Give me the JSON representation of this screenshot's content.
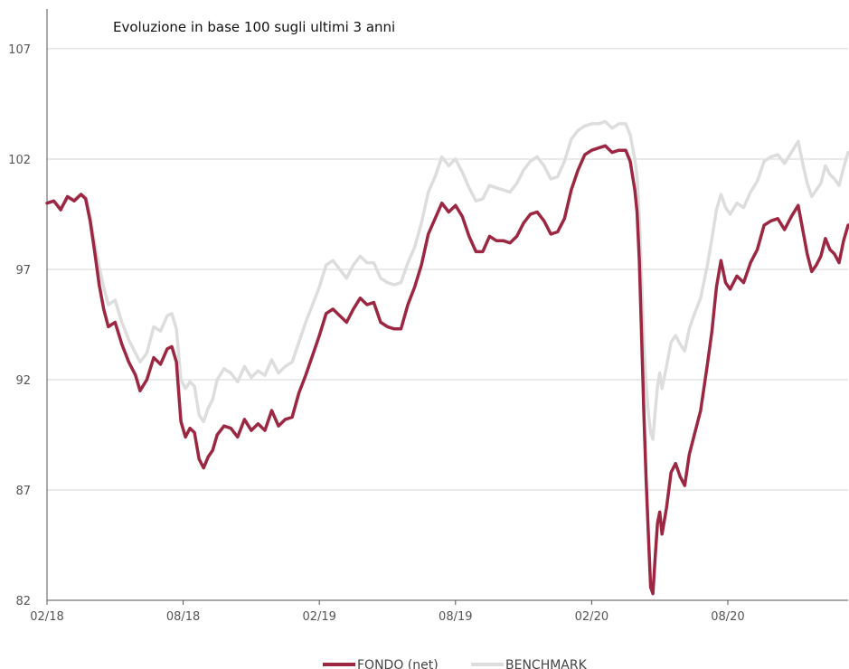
{
  "chart_data": {
    "type": "line",
    "title": "Evoluzione in base 100 sugli ultimi 3 anni",
    "xlabel": "",
    "ylabel": "",
    "x_ticks": [
      "02/18",
      "08/18",
      "02/19",
      "08/19",
      "02/20",
      "08/20"
    ],
    "y_ticks": [
      82,
      87,
      92,
      97,
      102,
      107
    ],
    "ylim": [
      82,
      108.8
    ],
    "xlim": [
      0,
      35.3
    ],
    "grid": "horizontal",
    "legend_position": "bottom",
    "x_unit": "months since 02/18",
    "series": [
      {
        "name": "FONDO (net)",
        "color": "#9b2743",
        "points": [
          [
            0,
            100
          ],
          [
            0.3,
            100.1
          ],
          [
            0.6,
            99.7
          ],
          [
            0.9,
            100.3
          ],
          [
            1.2,
            100.1
          ],
          [
            1.5,
            100.4
          ],
          [
            1.7,
            100.2
          ],
          [
            1.9,
            99.2
          ],
          [
            2.1,
            97.8
          ],
          [
            2.3,
            96.3
          ],
          [
            2.5,
            95.2
          ],
          [
            2.7,
            94.4
          ],
          [
            3.0,
            94.6
          ],
          [
            3.3,
            93.6
          ],
          [
            3.6,
            92.8
          ],
          [
            3.9,
            92.2
          ],
          [
            4.1,
            91.5
          ],
          [
            4.4,
            92.0
          ],
          [
            4.7,
            93.0
          ],
          [
            5.0,
            92.7
          ],
          [
            5.3,
            93.4
          ],
          [
            5.5,
            93.5
          ],
          [
            5.7,
            92.8
          ],
          [
            5.9,
            90.1
          ],
          [
            6.1,
            89.4
          ],
          [
            6.3,
            89.8
          ],
          [
            6.5,
            89.6
          ],
          [
            6.7,
            88.4
          ],
          [
            6.9,
            88.0
          ],
          [
            7.1,
            88.5
          ],
          [
            7.3,
            88.8
          ],
          [
            7.5,
            89.5
          ],
          [
            7.8,
            89.9
          ],
          [
            8.1,
            89.8
          ],
          [
            8.4,
            89.4
          ],
          [
            8.7,
            90.2
          ],
          [
            9.0,
            89.7
          ],
          [
            9.3,
            90.0
          ],
          [
            9.6,
            89.7
          ],
          [
            9.9,
            90.6
          ],
          [
            10.2,
            89.9
          ],
          [
            10.5,
            90.2
          ],
          [
            10.8,
            90.3
          ],
          [
            11.1,
            91.4
          ],
          [
            11.4,
            92.2
          ],
          [
            11.7,
            93.1
          ],
          [
            12.0,
            94.0
          ],
          [
            12.3,
            95.0
          ],
          [
            12.6,
            95.2
          ],
          [
            12.9,
            94.9
          ],
          [
            13.2,
            94.6
          ],
          [
            13.5,
            95.2
          ],
          [
            13.8,
            95.7
          ],
          [
            14.1,
            95.4
          ],
          [
            14.4,
            95.5
          ],
          [
            14.7,
            94.6
          ],
          [
            15.0,
            94.4
          ],
          [
            15.3,
            94.3
          ],
          [
            15.6,
            94.3
          ],
          [
            15.9,
            95.4
          ],
          [
            16.2,
            96.2
          ],
          [
            16.5,
            97.2
          ],
          [
            16.8,
            98.6
          ],
          [
            17.1,
            99.3
          ],
          [
            17.4,
            100.0
          ],
          [
            17.7,
            99.6
          ],
          [
            18.0,
            99.9
          ],
          [
            18.3,
            99.4
          ],
          [
            18.6,
            98.5
          ],
          [
            18.9,
            97.8
          ],
          [
            19.2,
            97.8
          ],
          [
            19.5,
            98.5
          ],
          [
            19.8,
            98.3
          ],
          [
            20.1,
            98.3
          ],
          [
            20.4,
            98.2
          ],
          [
            20.7,
            98.5
          ],
          [
            21.0,
            99.1
          ],
          [
            21.3,
            99.5
          ],
          [
            21.6,
            99.6
          ],
          [
            21.9,
            99.2
          ],
          [
            22.2,
            98.6
          ],
          [
            22.5,
            98.7
          ],
          [
            22.8,
            99.3
          ],
          [
            23.1,
            100.6
          ],
          [
            23.4,
            101.5
          ],
          [
            23.7,
            102.2
          ],
          [
            24.0,
            102.4
          ],
          [
            24.3,
            102.5
          ],
          [
            24.6,
            102.6
          ],
          [
            24.9,
            102.3
          ],
          [
            25.2,
            102.4
          ],
          [
            25.5,
            102.4
          ],
          [
            25.7,
            101.9
          ],
          [
            25.9,
            100.6
          ],
          [
            26.0,
            99.6
          ],
          [
            26.1,
            97.4
          ],
          [
            26.2,
            94.0
          ],
          [
            26.3,
            90.5
          ],
          [
            26.4,
            87.5
          ],
          [
            26.5,
            85.0
          ],
          [
            26.6,
            82.6
          ],
          [
            26.7,
            82.3
          ],
          [
            26.8,
            84.0
          ],
          [
            26.9,
            85.5
          ],
          [
            27.0,
            86.0
          ],
          [
            27.1,
            85.0
          ],
          [
            27.3,
            86.2
          ],
          [
            27.5,
            87.8
          ],
          [
            27.7,
            88.2
          ],
          [
            27.9,
            87.6
          ],
          [
            28.1,
            87.2
          ],
          [
            28.3,
            88.6
          ],
          [
            28.5,
            89.4
          ],
          [
            28.8,
            90.6
          ],
          [
            29.1,
            92.7
          ],
          [
            29.3,
            94.2
          ],
          [
            29.5,
            96.2
          ],
          [
            29.7,
            97.4
          ],
          [
            29.9,
            96.4
          ],
          [
            30.1,
            96.1
          ],
          [
            30.4,
            96.7
          ],
          [
            30.7,
            96.4
          ],
          [
            31.0,
            97.3
          ],
          [
            31.3,
            97.9
          ],
          [
            31.6,
            99.0
          ],
          [
            31.9,
            99.2
          ],
          [
            32.2,
            99.3
          ],
          [
            32.5,
            98.8
          ],
          [
            32.8,
            99.4
          ],
          [
            33.1,
            99.9
          ],
          [
            33.3,
            98.8
          ],
          [
            33.5,
            97.7
          ],
          [
            33.7,
            96.9
          ],
          [
            33.9,
            97.2
          ],
          [
            34.1,
            97.6
          ],
          [
            34.3,
            98.4
          ],
          [
            34.5,
            97.9
          ],
          [
            34.7,
            97.7
          ],
          [
            34.9,
            97.3
          ],
          [
            35.1,
            98.3
          ],
          [
            35.3,
            99.0
          ]
        ]
      },
      {
        "name": "BENCHMARK",
        "color": "#dddddd",
        "points": [
          [
            0,
            100
          ],
          [
            0.3,
            100.1
          ],
          [
            0.6,
            99.8
          ],
          [
            0.9,
            100.2
          ],
          [
            1.2,
            100.2
          ],
          [
            1.5,
            100.4
          ],
          [
            1.7,
            100.3
          ],
          [
            1.9,
            99.4
          ],
          [
            2.1,
            98.2
          ],
          [
            2.3,
            97.1
          ],
          [
            2.5,
            96.2
          ],
          [
            2.7,
            95.4
          ],
          [
            3.0,
            95.6
          ],
          [
            3.3,
            94.6
          ],
          [
            3.6,
            93.8
          ],
          [
            3.9,
            93.2
          ],
          [
            4.1,
            92.8
          ],
          [
            4.4,
            93.2
          ],
          [
            4.7,
            94.4
          ],
          [
            5.0,
            94.2
          ],
          [
            5.3,
            94.9
          ],
          [
            5.5,
            95.0
          ],
          [
            5.7,
            94.3
          ],
          [
            5.9,
            92.0
          ],
          [
            6.1,
            91.6
          ],
          [
            6.3,
            91.9
          ],
          [
            6.5,
            91.7
          ],
          [
            6.7,
            90.4
          ],
          [
            6.9,
            90.1
          ],
          [
            7.1,
            90.7
          ],
          [
            7.3,
            91.1
          ],
          [
            7.5,
            92.0
          ],
          [
            7.8,
            92.5
          ],
          [
            8.1,
            92.3
          ],
          [
            8.4,
            91.9
          ],
          [
            8.7,
            92.6
          ],
          [
            9.0,
            92.1
          ],
          [
            9.3,
            92.4
          ],
          [
            9.6,
            92.2
          ],
          [
            9.9,
            92.9
          ],
          [
            10.2,
            92.3
          ],
          [
            10.5,
            92.6
          ],
          [
            10.8,
            92.8
          ],
          [
            11.1,
            93.7
          ],
          [
            11.4,
            94.6
          ],
          [
            11.7,
            95.4
          ],
          [
            12.0,
            96.2
          ],
          [
            12.3,
            97.2
          ],
          [
            12.6,
            97.4
          ],
          [
            12.9,
            97.0
          ],
          [
            13.2,
            96.6
          ],
          [
            13.5,
            97.2
          ],
          [
            13.8,
            97.6
          ],
          [
            14.1,
            97.3
          ],
          [
            14.4,
            97.3
          ],
          [
            14.7,
            96.6
          ],
          [
            15.0,
            96.4
          ],
          [
            15.3,
            96.3
          ],
          [
            15.6,
            96.4
          ],
          [
            15.9,
            97.3
          ],
          [
            16.2,
            98.0
          ],
          [
            16.5,
            99.1
          ],
          [
            16.8,
            100.5
          ],
          [
            17.1,
            101.2
          ],
          [
            17.4,
            102.1
          ],
          [
            17.7,
            101.7
          ],
          [
            18.0,
            102.0
          ],
          [
            18.3,
            101.4
          ],
          [
            18.6,
            100.7
          ],
          [
            18.9,
            100.1
          ],
          [
            19.2,
            100.2
          ],
          [
            19.5,
            100.8
          ],
          [
            19.8,
            100.7
          ],
          [
            20.1,
            100.6
          ],
          [
            20.4,
            100.5
          ],
          [
            20.7,
            100.9
          ],
          [
            21.0,
            101.5
          ],
          [
            21.3,
            101.9
          ],
          [
            21.6,
            102.1
          ],
          [
            21.9,
            101.7
          ],
          [
            22.2,
            101.1
          ],
          [
            22.5,
            101.2
          ],
          [
            22.8,
            101.9
          ],
          [
            23.1,
            102.9
          ],
          [
            23.4,
            103.3
          ],
          [
            23.7,
            103.5
          ],
          [
            24.0,
            103.6
          ],
          [
            24.3,
            103.6
          ],
          [
            24.6,
            103.7
          ],
          [
            24.9,
            103.4
          ],
          [
            25.2,
            103.6
          ],
          [
            25.5,
            103.6
          ],
          [
            25.7,
            103.1
          ],
          [
            25.9,
            102.0
          ],
          [
            26.0,
            101.2
          ],
          [
            26.1,
            99.3
          ],
          [
            26.2,
            96.6
          ],
          [
            26.3,
            93.6
          ],
          [
            26.4,
            91.8
          ],
          [
            26.5,
            90.5
          ],
          [
            26.6,
            89.6
          ],
          [
            26.7,
            89.3
          ],
          [
            26.8,
            90.6
          ],
          [
            26.9,
            91.7
          ],
          [
            27.0,
            92.3
          ],
          [
            27.1,
            91.6
          ],
          [
            27.3,
            92.6
          ],
          [
            27.5,
            93.7
          ],
          [
            27.7,
            94.0
          ],
          [
            27.9,
            93.6
          ],
          [
            28.1,
            93.3
          ],
          [
            28.3,
            94.3
          ],
          [
            28.5,
            94.9
          ],
          [
            28.8,
            95.7
          ],
          [
            29.1,
            97.2
          ],
          [
            29.3,
            98.4
          ],
          [
            29.5,
            99.7
          ],
          [
            29.7,
            100.4
          ],
          [
            29.9,
            99.8
          ],
          [
            30.1,
            99.5
          ],
          [
            30.4,
            100.0
          ],
          [
            30.7,
            99.8
          ],
          [
            31.0,
            100.5
          ],
          [
            31.3,
            101.0
          ],
          [
            31.6,
            101.9
          ],
          [
            31.9,
            102.1
          ],
          [
            32.2,
            102.2
          ],
          [
            32.5,
            101.8
          ],
          [
            32.8,
            102.3
          ],
          [
            33.1,
            102.8
          ],
          [
            33.3,
            101.8
          ],
          [
            33.5,
            100.9
          ],
          [
            33.7,
            100.3
          ],
          [
            33.9,
            100.6
          ],
          [
            34.1,
            100.9
          ],
          [
            34.3,
            101.7
          ],
          [
            34.5,
            101.3
          ],
          [
            34.7,
            101.1
          ],
          [
            34.9,
            100.8
          ],
          [
            35.1,
            101.6
          ],
          [
            35.3,
            102.3
          ]
        ]
      }
    ]
  }
}
